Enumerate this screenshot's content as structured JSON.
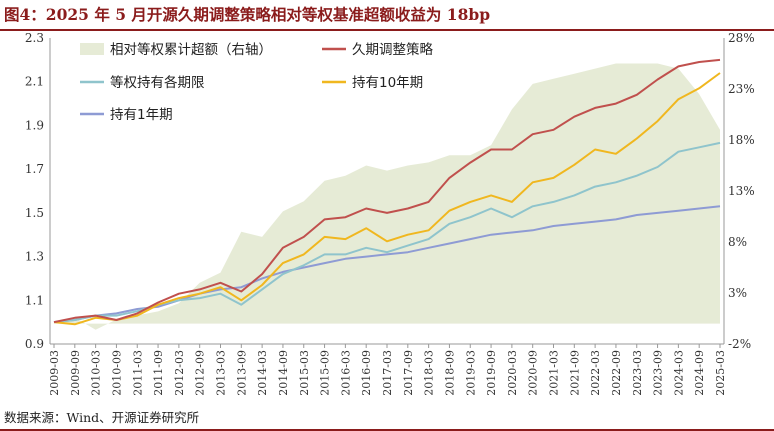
{
  "title": "图4：2025 年 5 月开源久期调整策略相对等权基准超额收益为 18bp",
  "source": "数据来源：Wind、开源证券研究所",
  "colors": {
    "title": "#8b1c1c",
    "area": "#e6ebd6",
    "duration": "#c0504d",
    "equal": "#8fc4cc",
    "tenyear": "#f0b71f",
    "oneyear": "#8e9bd4"
  },
  "chart_data": {
    "type": "line",
    "x": [
      "2009-03",
      "2009-09",
      "2010-03",
      "2010-09",
      "2011-03",
      "2011-09",
      "2012-03",
      "2012-09",
      "2013-03",
      "2013-09",
      "2014-03",
      "2014-09",
      "2015-03",
      "2015-09",
      "2016-03",
      "2016-09",
      "2017-03",
      "2017-09",
      "2018-03",
      "2018-09",
      "2019-03",
      "2019-09",
      "2020-03",
      "2020-09",
      "2021-03",
      "2021-09",
      "2022-03",
      "2022-09",
      "2023-03",
      "2023-09",
      "2024-03",
      "2024-09",
      "2025-03"
    ],
    "ylim": [
      0.9,
      2.3
    ],
    "yticks": [
      "0.9",
      "1.1",
      "1.3",
      "1.5",
      "1.7",
      "1.9",
      "2.1",
      "2.3"
    ],
    "y2lim": [
      -2,
      28
    ],
    "y2ticks": [
      "-2%",
      "3%",
      "8%",
      "13%",
      "18%",
      "23%",
      "28%"
    ],
    "legend": [
      "相对等权累计超额（右轴）",
      "久期调整策略",
      "等权持有各期限",
      "持有10年期",
      "持有1年期"
    ],
    "series": [
      {
        "name": "相对等权累计超额（右轴）",
        "axis": "right",
        "type": "area",
        "values": [
          0.0,
          0.6,
          -0.6,
          0.4,
          0.8,
          1.2,
          2.0,
          4.0,
          5.0,
          9.0,
          8.5,
          11.0,
          12.0,
          14.0,
          14.5,
          15.5,
          15.0,
          15.5,
          15.8,
          16.5,
          16.5,
          17.5,
          21.0,
          23.5,
          24.0,
          24.5,
          25.0,
          25.5,
          25.5,
          25.5,
          25.0,
          22.5,
          19.0
        ]
      },
      {
        "name": "久期调整策略",
        "axis": "left",
        "values": [
          1.0,
          1.02,
          1.03,
          1.01,
          1.04,
          1.09,
          1.13,
          1.15,
          1.18,
          1.14,
          1.22,
          1.34,
          1.39,
          1.47,
          1.48,
          1.52,
          1.5,
          1.52,
          1.55,
          1.66,
          1.73,
          1.79,
          1.79,
          1.86,
          1.88,
          1.94,
          1.98,
          2.0,
          2.04,
          2.11,
          2.17,
          2.19,
          2.2
        ]
      },
      {
        "name": "等权持有各期限",
        "axis": "left",
        "values": [
          1.0,
          1.01,
          1.03,
          1.03,
          1.05,
          1.08,
          1.1,
          1.11,
          1.13,
          1.08,
          1.15,
          1.22,
          1.26,
          1.31,
          1.31,
          1.34,
          1.32,
          1.35,
          1.38,
          1.45,
          1.48,
          1.52,
          1.48,
          1.53,
          1.55,
          1.58,
          1.62,
          1.64,
          1.67,
          1.71,
          1.78,
          1.8,
          1.82
        ]
      },
      {
        "name": "持有10年期",
        "axis": "left",
        "values": [
          1.0,
          0.99,
          1.02,
          1.01,
          1.03,
          1.08,
          1.11,
          1.13,
          1.16,
          1.1,
          1.17,
          1.27,
          1.31,
          1.39,
          1.38,
          1.43,
          1.37,
          1.4,
          1.42,
          1.51,
          1.55,
          1.58,
          1.55,
          1.64,
          1.66,
          1.72,
          1.79,
          1.77,
          1.84,
          1.92,
          2.02,
          2.07,
          2.14
        ]
      },
      {
        "name": "持有1年期",
        "axis": "left",
        "values": [
          1.0,
          1.01,
          1.03,
          1.04,
          1.06,
          1.07,
          1.1,
          1.13,
          1.15,
          1.16,
          1.2,
          1.23,
          1.25,
          1.27,
          1.29,
          1.3,
          1.31,
          1.32,
          1.34,
          1.36,
          1.38,
          1.4,
          1.41,
          1.42,
          1.44,
          1.45,
          1.46,
          1.47,
          1.49,
          1.5,
          1.51,
          1.52,
          1.53
        ]
      }
    ]
  }
}
